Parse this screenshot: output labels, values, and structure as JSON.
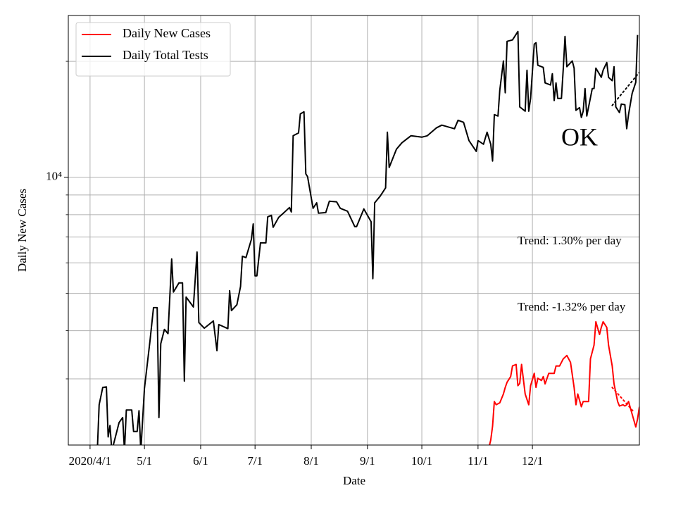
{
  "chart_data": {
    "type": "line",
    "x_label": "Date",
    "y_label": "Daily New Cases",
    "yscale": "log",
    "grid": true,
    "legend": "upper left",
    "xlim": [
      -12,
      303
    ],
    "xticks": [
      {
        "value": 0,
        "label": "2020/4/1"
      },
      {
        "value": 30,
        "label": "5/1"
      },
      {
        "value": 61,
        "label": "6/1"
      },
      {
        "value": 91,
        "label": "7/1"
      },
      {
        "value": 122,
        "label": "8/1"
      },
      {
        "value": 153,
        "label": "9/1"
      },
      {
        "value": 183,
        "label": "10/1"
      },
      {
        "value": 214,
        "label": "11/1"
      },
      {
        "value": 244,
        "label": "12/1"
      }
    ],
    "ylim": [
      2020,
      26300
    ],
    "yticks": [
      {
        "value": 10000,
        "label": "10⁴"
      }
    ],
    "minor_yticks": [
      3000,
      4000,
      5000,
      6000,
      7000,
      8000,
      9000,
      20000
    ],
    "series": [
      {
        "name": "Daily New Cases",
        "color": "#ff0000",
        "x": [
          220,
          221,
          222,
          223,
          224,
          226,
          228,
          229,
          230,
          232,
          233,
          235,
          236,
          237,
          238,
          240,
          242,
          243,
          245,
          246,
          247,
          249,
          250,
          251,
          253,
          256,
          257,
          259,
          261,
          263,
          265,
          267,
          268,
          269,
          271,
          272,
          275,
          276,
          278,
          279,
          281,
          282,
          283,
          285,
          286,
          288,
          289,
          291,
          292,
          294,
          295,
          296,
          297,
          299,
          301,
          302,
          303
        ],
        "values": [
          1990,
          2080,
          2260,
          2620,
          2570,
          2600,
          2740,
          2850,
          2940,
          3040,
          3240,
          3270,
          2880,
          2920,
          3270,
          2740,
          2570,
          2880,
          3100,
          2850,
          3010,
          2970,
          3040,
          2910,
          3100,
          3100,
          3240,
          3240,
          3380,
          3450,
          3310,
          2850,
          2570,
          2740,
          2540,
          2620,
          2620,
          3380,
          3670,
          4220,
          3910,
          4080,
          4220,
          4080,
          3670,
          3240,
          2910,
          2620,
          2550,
          2570,
          2550,
          2570,
          2620,
          2430,
          2250,
          2360,
          2540
        ]
      },
      {
        "name": "Daily Total Tests",
        "color": "#000000",
        "x": [
          4,
          5,
          7,
          9,
          10,
          11,
          12,
          16,
          18,
          19,
          20,
          23,
          24,
          26,
          27,
          28,
          30,
          33,
          35,
          37,
          38,
          39,
          41,
          43,
          45,
          46,
          49,
          51,
          52,
          53,
          57,
          59,
          60,
          63,
          68,
          70,
          71,
          76,
          77,
          78,
          81,
          83,
          84,
          86,
          89,
          90,
          91,
          92,
          94,
          97,
          98,
          100,
          101,
          104,
          107,
          110,
          111,
          112,
          115,
          116,
          118,
          119,
          120,
          123,
          125,
          126,
          130,
          132,
          136,
          138,
          142,
          146,
          147,
          151,
          155,
          156,
          157,
          160,
          163,
          164,
          165,
          169,
          172,
          177,
          183,
          186,
          191,
          194,
          201,
          203,
          206,
          209,
          213,
          214,
          217,
          219,
          221,
          222,
          223,
          225,
          226,
          228,
          229,
          230,
          233,
          236,
          237,
          240,
          241,
          242,
          243,
          245,
          246,
          247,
          250,
          251,
          254,
          255,
          256,
          257,
          258,
          260,
          261,
          262,
          263,
          266,
          267,
          268,
          270,
          271,
          272,
          273,
          274,
          277,
          278,
          279,
          282,
          283,
          285,
          286,
          288,
          289,
          290,
          292,
          293,
          295,
          296,
          297,
          299,
          301,
          302
        ],
        "values": [
          1950,
          2570,
          2850,
          2860,
          2120,
          2270,
          1950,
          2310,
          2380,
          1950,
          2490,
          2490,
          2190,
          2190,
          2480,
          1950,
          2830,
          3750,
          4590,
          4590,
          2380,
          3700,
          4030,
          3930,
          6140,
          5040,
          5320,
          5320,
          2960,
          4890,
          4610,
          6400,
          4200,
          4060,
          4240,
          3550,
          4150,
          4050,
          5080,
          4510,
          4670,
          5210,
          6240,
          6190,
          6900,
          7570,
          5550,
          5550,
          6760,
          6760,
          7900,
          7970,
          7420,
          7870,
          8100,
          8350,
          8130,
          12820,
          13040,
          14610,
          14790,
          10210,
          10040,
          8310,
          8590,
          8070,
          8100,
          8670,
          8640,
          8310,
          8170,
          7450,
          7450,
          8280,
          7670,
          5460,
          8590,
          8930,
          9390,
          13090,
          10610,
          11830,
          12290,
          12820,
          12710,
          12820,
          13430,
          13660,
          13370,
          14060,
          13890,
          12450,
          11680,
          12450,
          12190,
          13090,
          12190,
          11020,
          14550,
          14420,
          16860,
          20040,
          16580,
          22540,
          22730,
          23900,
          15230,
          14850,
          18970,
          14850,
          16030,
          22160,
          22350,
          19530,
          19290,
          17580,
          17360,
          18570,
          15820,
          17580,
          16030,
          16030,
          19120,
          23210,
          19370,
          20040,
          19210,
          14920,
          15170,
          14300,
          14850,
          17000,
          14420,
          17000,
          17000,
          19210,
          18180,
          18970,
          19860,
          18180,
          17810,
          19370,
          15230,
          14730,
          15490,
          15430,
          13370,
          14550,
          16510,
          17650,
          23410
        ]
      }
    ],
    "trend_lines": [
      {
        "color": "#000000",
        "style": "dotted",
        "x": [
          288,
          303
        ],
        "values": [
          15370,
          18730
        ]
      },
      {
        "color": "#ff0000",
        "style": "dotted",
        "x": [
          288,
          300
        ],
        "values": [
          2850,
          2460
        ]
      }
    ],
    "annotations": [
      "Trend: 1.30% per day",
      "Trend: -1.32% per day",
      "OK"
    ]
  }
}
